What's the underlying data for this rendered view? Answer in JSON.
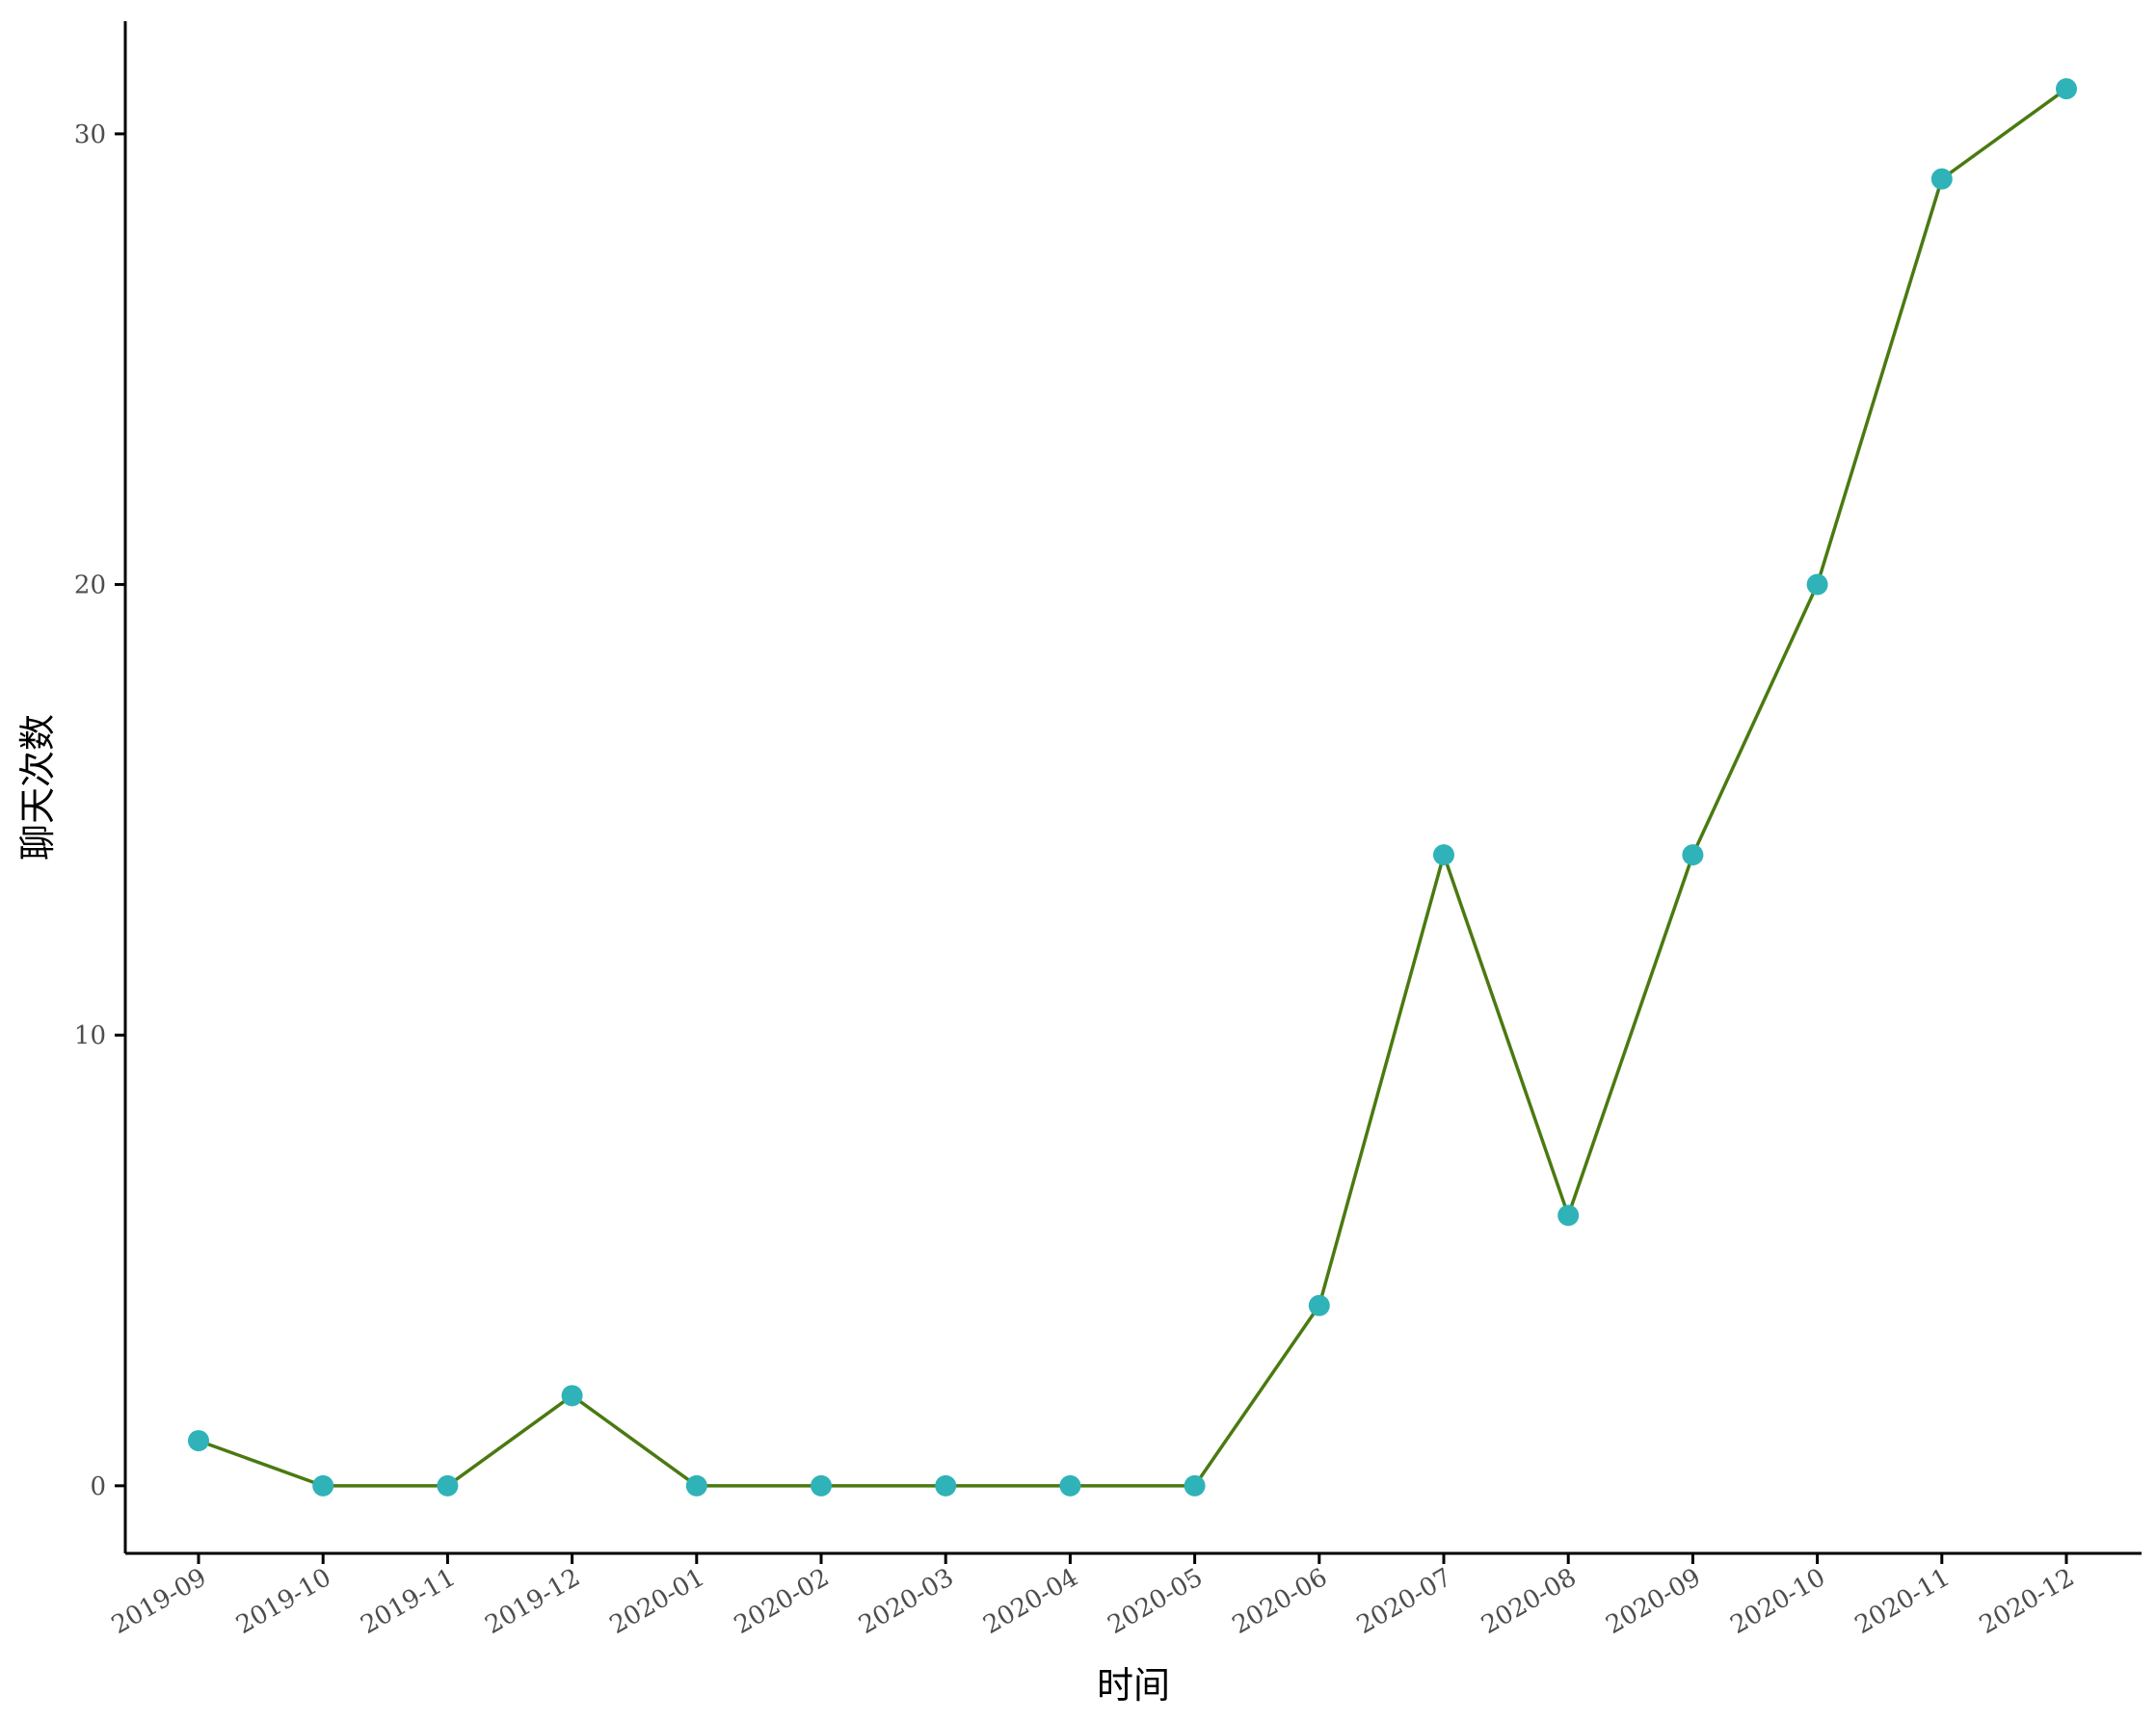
{
  "chart_data": {
    "type": "line",
    "xlabel": "时间",
    "ylabel": "聊天次数",
    "categories": [
      "2019-09",
      "2019-10",
      "2019-11",
      "2019-12",
      "2020-01",
      "2020-02",
      "2020-03",
      "2020-04",
      "2020-05",
      "2020-06",
      "2020-07",
      "2020-08",
      "2020-09",
      "2020-10",
      "2020-11",
      "2020-12"
    ],
    "series": [
      {
        "values": [
          1,
          0,
          0,
          2,
          0,
          0,
          0,
          0,
          0,
          4,
          14,
          6,
          14,
          20,
          29,
          31
        ]
      }
    ],
    "yticks": [
      0,
      10,
      20,
      30
    ],
    "ylim": [
      -1.5,
      32.5
    ],
    "grid": false,
    "legend": "none",
    "colors": {
      "line": "#4a7a10",
      "point": "#2fb3b8"
    }
  }
}
